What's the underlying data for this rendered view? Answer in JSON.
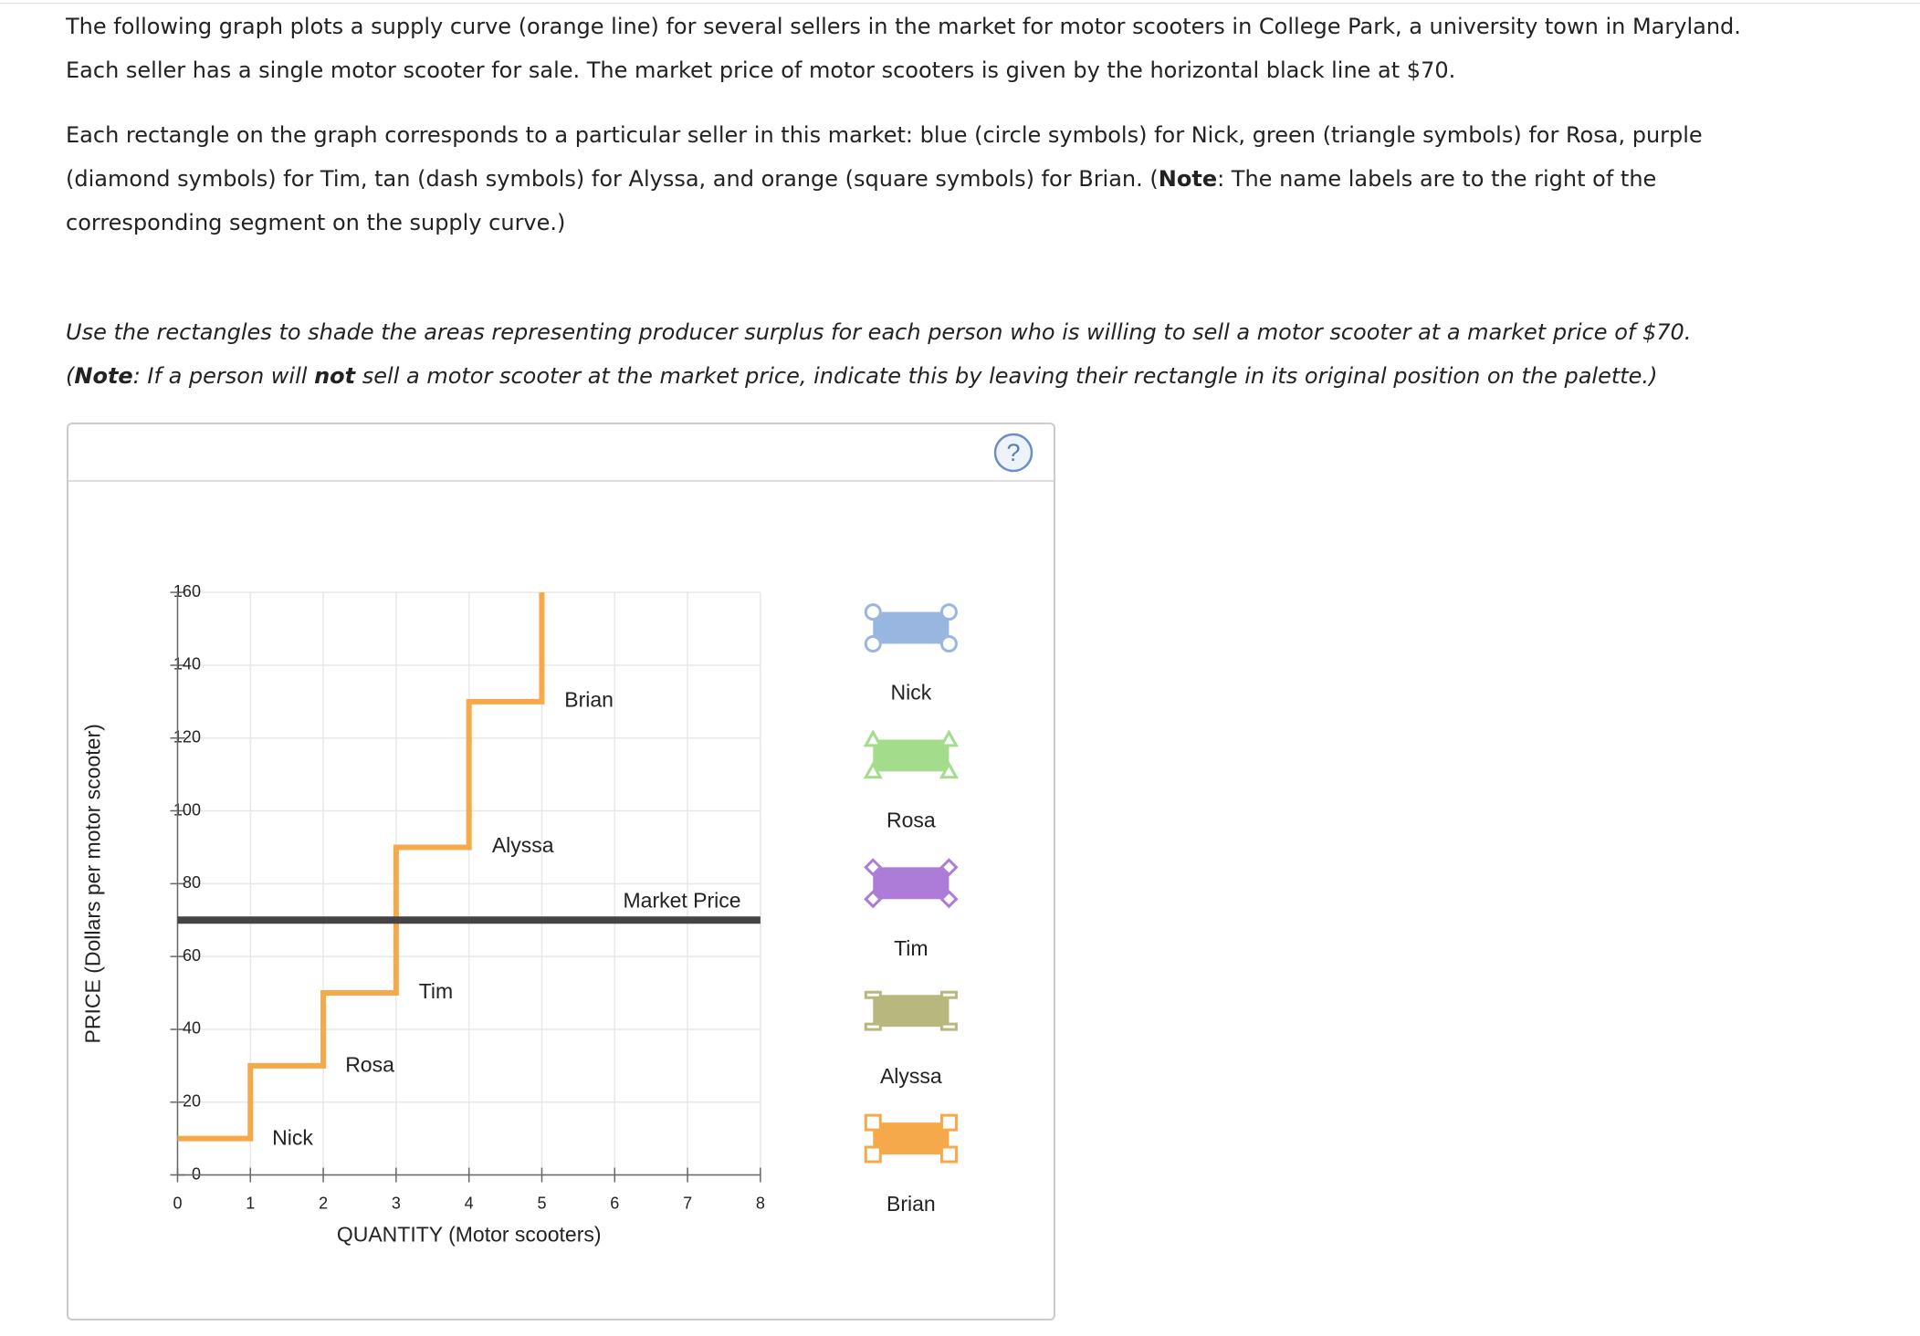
{
  "instructions": {
    "p1": "The following graph plots a supply curve (orange line) for several sellers in the market for motor scooters in College Park, a university town in Maryland. Each seller has a single motor scooter for sale. The market price of motor scooters is given by the horizontal black line at $70.",
    "p2": [
      "Each rectangle on the graph corresponds to a particular seller in this market: blue (circle symbols) for Nick, green (triangle symbols) for Rosa, purple (diamond symbols) for Tim, tan (dash symbols) for Alyssa, and orange (square symbols) for Brian. (",
      "Note",
      ": The name labels are to the right of the corresponding segment on the supply curve.)"
    ],
    "p3": "Use the rectangles to shade the areas representing producer surplus for each person who is willing to sell a motor scooter at a market price of $70.",
    "p4": [
      "(",
      "Note",
      ": If a person will ",
      "not",
      " sell a motor scooter at the market price, indicate this by leaving their rectangle in its original position on the palette.)"
    ]
  },
  "help_icon": "?",
  "chart_data": {
    "type": "line",
    "x_label": "QUANTITY (Motor scooters)",
    "y_label": "PRICE (Dollars per motor scooter)",
    "xlim": [
      0,
      8
    ],
    "ylim": [
      0,
      160
    ],
    "xticks": [
      0,
      1,
      2,
      3,
      4,
      5,
      6,
      7,
      8
    ],
    "yticks": [
      0,
      20,
      40,
      60,
      80,
      100,
      120,
      140,
      160
    ],
    "grid": true,
    "series": [
      {
        "color": "#f5a94b",
        "x": [
          0,
          1,
          1,
          2,
          2,
          3,
          3,
          4,
          4,
          5,
          5
        ],
        "values": [
          10,
          10,
          30,
          30,
          50,
          50,
          90,
          90,
          130,
          130,
          160
        ]
      },
      {
        "color": "#444444",
        "x": [
          0,
          8
        ],
        "values": [
          70,
          70
        ]
      }
    ],
    "annotations": [
      "Nick",
      "Rosa",
      "Tim",
      "Alyssa",
      "Brian",
      "Market Price"
    ],
    "palette": [
      {
        "name": "Nick",
        "color": "#98b6df",
        "symbol": "circle"
      },
      {
        "name": "Rosa",
        "color": "#a3dc8a",
        "symbol": "triangle"
      },
      {
        "name": "Tim",
        "color": "#ad7bd8",
        "symbol": "diamond"
      },
      {
        "name": "Alyssa",
        "color": "#b8b87e",
        "symbol": "dash"
      },
      {
        "name": "Brian",
        "color": "#f5a94b",
        "symbol": "square"
      }
    ]
  }
}
